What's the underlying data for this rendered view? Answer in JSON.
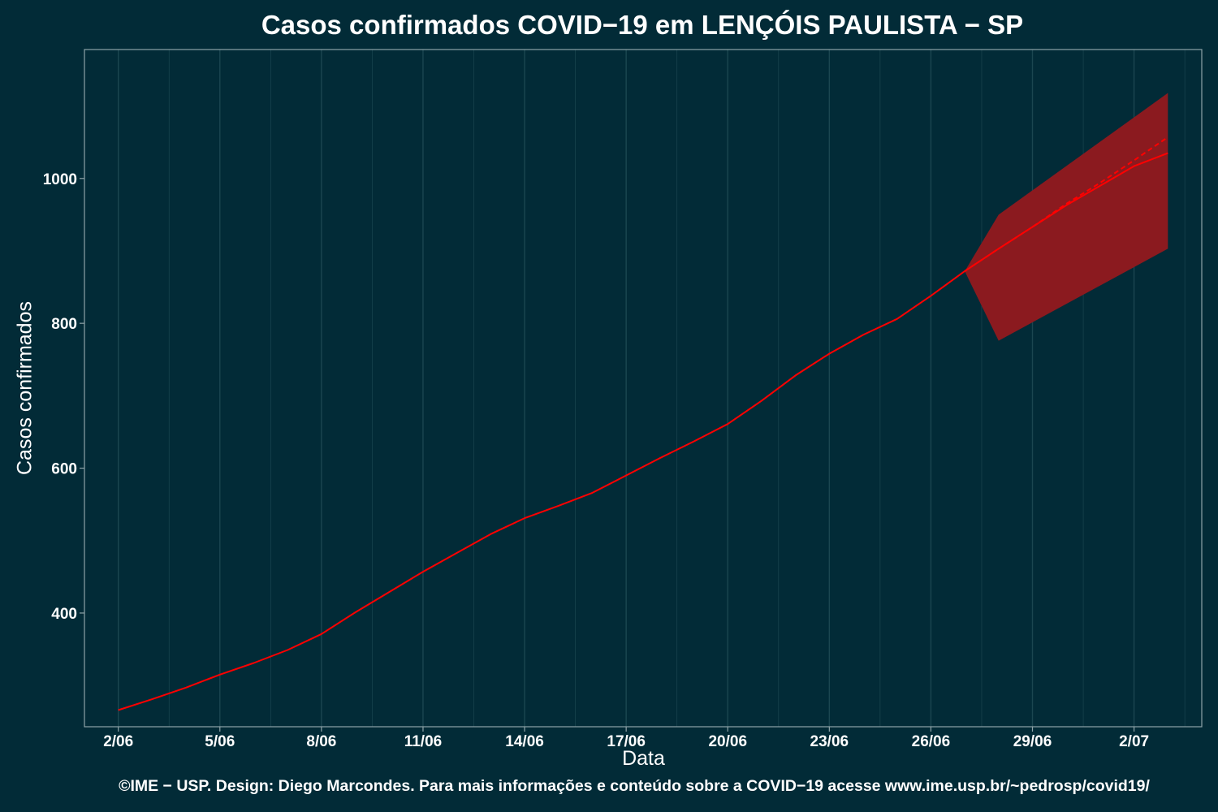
{
  "chart_data": {
    "type": "line",
    "title": "Casos confirmados COVID−19 em LENÇÓIS PAULISTA − SP",
    "xlabel": "Data",
    "ylabel": "Casos confirmados",
    "caption": "©IME − USP. Design: Diego Marcondes. Para mais informações e conteúdo sobre a COVID−19 acesse www.ime.usp.br/~pedrosp/covid19/",
    "x_range": [
      "2020-06-01",
      "2020-07-04"
    ],
    "ylim": [
      243,
      1178
    ],
    "x_ticks": [
      {
        "date": "2020-06-02",
        "label": "2/06"
      },
      {
        "date": "2020-06-05",
        "label": "5/06"
      },
      {
        "date": "2020-06-08",
        "label": "8/06"
      },
      {
        "date": "2020-06-11",
        "label": "11/06"
      },
      {
        "date": "2020-06-14",
        "label": "14/06"
      },
      {
        "date": "2020-06-17",
        "label": "17/06"
      },
      {
        "date": "2020-06-20",
        "label": "20/06"
      },
      {
        "date": "2020-06-23",
        "label": "23/06"
      },
      {
        "date": "2020-06-26",
        "label": "26/06"
      },
      {
        "date": "2020-06-29",
        "label": "29/06"
      },
      {
        "date": "2020-07-02",
        "label": "2/07"
      }
    ],
    "y_ticks": [
      400,
      600,
      800,
      1000
    ],
    "grid": true,
    "colors": {
      "background": "#022b37",
      "line": "#ff0000",
      "band": "#8b1a1f",
      "grid": "#1b4650",
      "frame": "#8fa3a8"
    },
    "series": [
      {
        "style": "solid",
        "points": [
          [
            "2020-06-02",
            266
          ],
          [
            "2020-06-03",
            281
          ],
          [
            "2020-06-04",
            297
          ],
          [
            "2020-06-05",
            315
          ],
          [
            "2020-06-06",
            331
          ],
          [
            "2020-06-07",
            349
          ],
          [
            "2020-06-08",
            371
          ],
          [
            "2020-06-09",
            401
          ],
          [
            "2020-06-10",
            429
          ],
          [
            "2020-06-11",
            457
          ],
          [
            "2020-06-12",
            483
          ],
          [
            "2020-06-13",
            509
          ],
          [
            "2020-06-14",
            531
          ],
          [
            "2020-06-15",
            548
          ],
          [
            "2020-06-16",
            566
          ],
          [
            "2020-06-17",
            590
          ],
          [
            "2020-06-18",
            614
          ],
          [
            "2020-06-19",
            637
          ],
          [
            "2020-06-20",
            661
          ],
          [
            "2020-06-21",
            693
          ],
          [
            "2020-06-22",
            728
          ],
          [
            "2020-06-23",
            758
          ],
          [
            "2020-06-24",
            784
          ],
          [
            "2020-06-25",
            806
          ],
          [
            "2020-06-26",
            838
          ],
          [
            "2020-06-27",
            872
          ],
          [
            "2020-06-28",
            903
          ],
          [
            "2020-06-29",
            933
          ],
          [
            "2020-06-30",
            963
          ],
          [
            "2020-07-01",
            990
          ],
          [
            "2020-07-02",
            1017
          ],
          [
            "2020-07-03",
            1035
          ]
        ]
      },
      {
        "style": "dashed",
        "points": [
          [
            "2020-06-27",
            872
          ],
          [
            "2020-06-28",
            903
          ],
          [
            "2020-06-29",
            933
          ],
          [
            "2020-06-30",
            965
          ],
          [
            "2020-07-01",
            994
          ],
          [
            "2020-07-02",
            1025
          ],
          [
            "2020-07-03",
            1057
          ]
        ]
      }
    ],
    "band": {
      "lower": [
        [
          "2020-06-27",
          872
        ],
        [
          "2020-06-28",
          776
        ],
        [
          "2020-07-03",
          903
        ]
      ],
      "upper": [
        [
          "2020-06-27",
          872
        ],
        [
          "2020-06-28",
          950
        ],
        [
          "2020-07-03",
          1118
        ]
      ]
    }
  }
}
